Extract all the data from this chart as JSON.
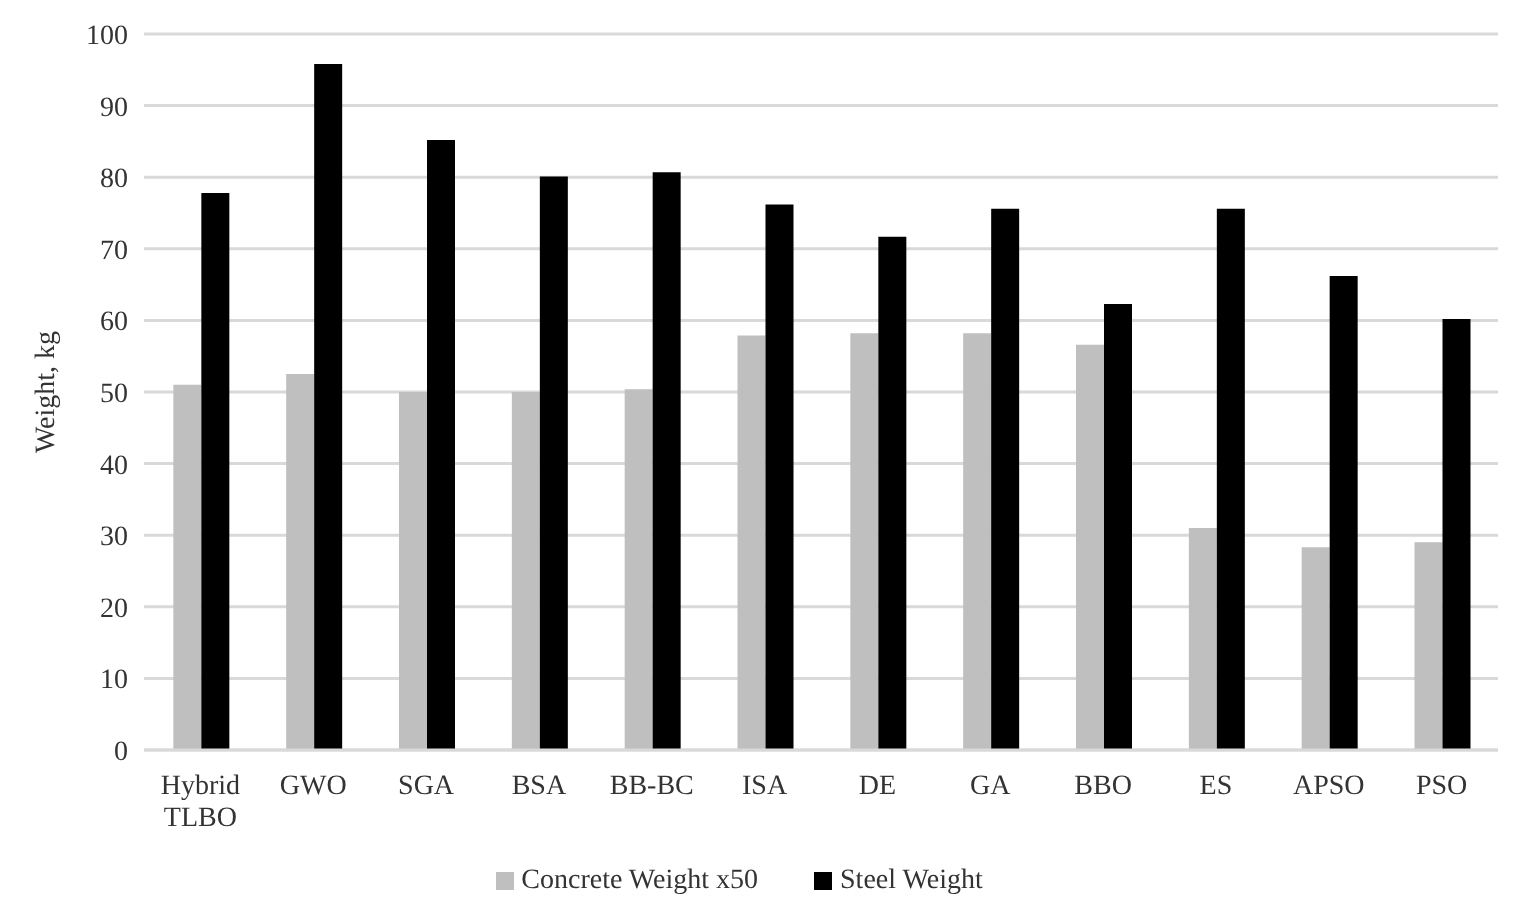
{
  "chart_data": {
    "type": "bar",
    "ylabel": "Weight, kg",
    "categories": [
      "Hybrid TLBO",
      "GWO",
      "SGA",
      "BSA",
      "BB-BC",
      "ISA",
      "DE",
      "GA",
      "BBO",
      "ES",
      "APSO",
      "PSO"
    ],
    "series": [
      {
        "name": "Concrete Weight x50",
        "color": "#bfbfbf",
        "values": [
          51,
          52.5,
          50,
          50,
          50.4,
          57.9,
          58.2,
          58.2,
          56.6,
          31,
          28.3,
          29
        ]
      },
      {
        "name": "Steel Weight",
        "color": "#000000",
        "values": [
          77.8,
          95.8,
          85.2,
          80.1,
          80.7,
          76.2,
          71.7,
          75.6,
          62.3,
          75.6,
          66.2,
          60.2
        ]
      }
    ],
    "ylim": [
      0,
      100
    ],
    "yticks": [
      0,
      10,
      20,
      30,
      40,
      50,
      60,
      70,
      80,
      90,
      100
    ],
    "grid": "y",
    "legend": "bottom"
  }
}
